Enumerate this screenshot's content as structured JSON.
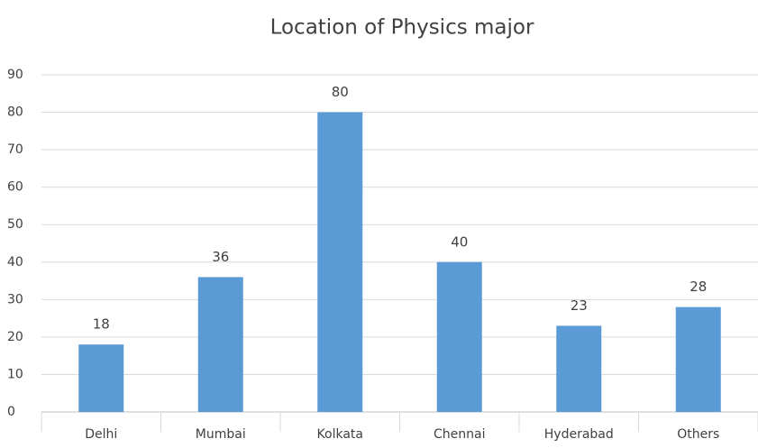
{
  "chart_data": {
    "type": "bar",
    "title": "Location of Physics major",
    "categories": [
      "Delhi",
      "Mumbai",
      "Kolkata",
      "Chennai",
      "Hyderabad",
      "Others"
    ],
    "values": [
      18,
      36,
      80,
      40,
      23,
      28
    ],
    "color": "#5b9bd5",
    "ylim": [
      0,
      90
    ],
    "yticks": [
      0,
      10,
      20,
      30,
      40,
      50,
      60,
      70,
      80,
      90
    ],
    "grid": true
  }
}
